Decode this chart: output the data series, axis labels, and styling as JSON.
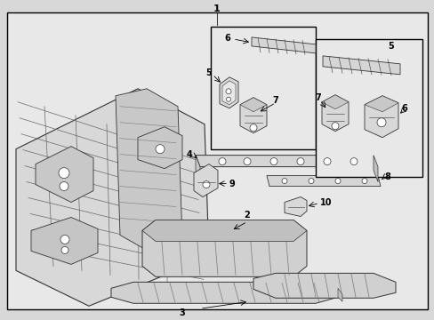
{
  "bg_color": "#d8d8d8",
  "box_facecolor": "#e8e8e8",
  "box_edgecolor": "#000000",
  "inset_facecolor": "#e8e8e8",
  "inset_edgecolor": "#000000",
  "part_fc": "#e0e0e0",
  "part_ec": "#333333",
  "part_lw": 0.6,
  "line_color": "#333333",
  "label_fontsize": 7,
  "callout_lw": 0.7
}
